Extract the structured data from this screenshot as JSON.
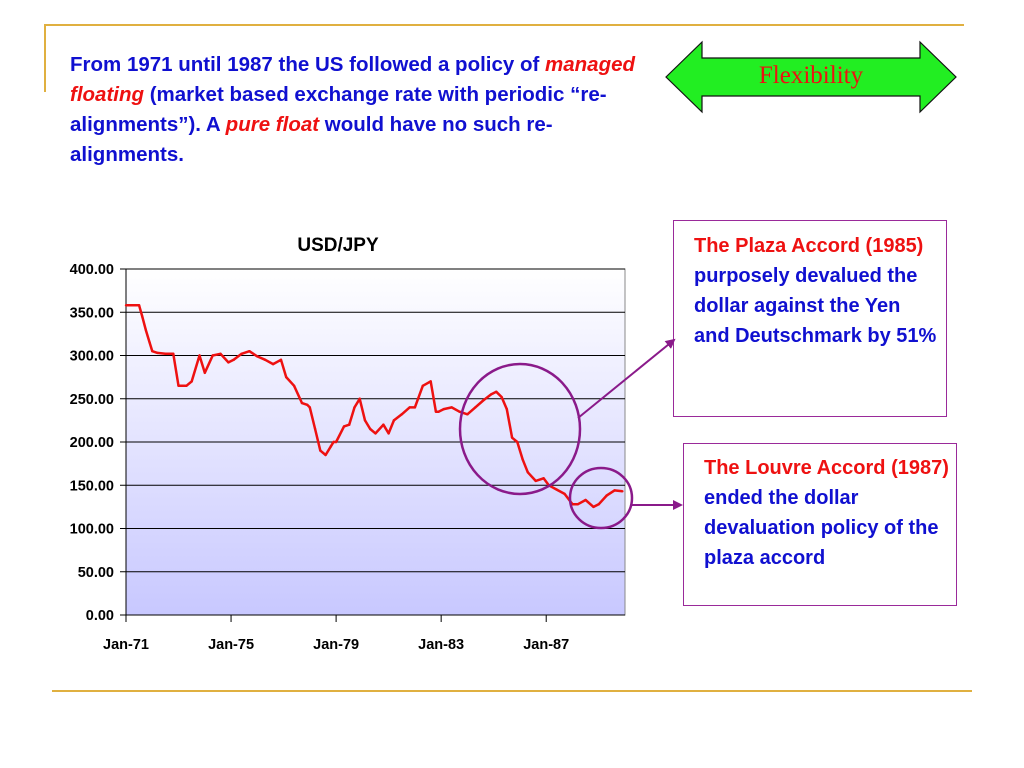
{
  "slide": {
    "intro": {
      "p1": "From 1971 until 1987 the US followed a policy of ",
      "p2": "managed floating",
      "p3": " (market based exchange rate with periodic “re-alignments”). A ",
      "p4": "pure float",
      "p5": " would have no such re-alignments."
    },
    "arrow_label": "Flexibility",
    "plaza": {
      "title": "The Plaza Accord (1985)",
      "body": " purposely devalued the dollar against the Yen and Deutschmark by 51%"
    },
    "louvre": {
      "title": "The Louvre Accord (1987)",
      "body": " ended the dollar devaluation policy of the plaza accord"
    }
  },
  "colors": {
    "accent_line": "#e0b040",
    "text_blue": "#1010d0",
    "text_red": "#ee1111",
    "arrow_fill": "#22ee22",
    "callout_border": "#9a2a9a",
    "circle_stroke": "#8a1a8a",
    "series_line": "#ee1111",
    "plot_bg_top": "#ffffff",
    "plot_bg_bottom": "#c8c8ff"
  },
  "chart_data": {
    "type": "line",
    "title": "USD/JPY",
    "ylim": [
      0,
      400
    ],
    "y_ticks": [
      0,
      50,
      100,
      150,
      200,
      250,
      300,
      350,
      400
    ],
    "y_tick_labels": [
      "0.00",
      "50.00",
      "100.00",
      "150.00",
      "200.00",
      "250.00",
      "300.00",
      "350.00",
      "400.00"
    ],
    "x_ticks": [
      1971,
      1975,
      1979,
      1983,
      1987
    ],
    "x_tick_labels": [
      "Jan-71",
      "Jan-75",
      "Jan-79",
      "Jan-83",
      "Jan-87"
    ],
    "xlim": [
      1971,
      1990
    ],
    "grid": true,
    "series": [
      {
        "x": [
          1971.0,
          1971.5,
          1971.62,
          1971.75,
          1971.9,
          1972.0,
          1972.2,
          1972.5,
          1972.8,
          1973.0,
          1973.1,
          1973.3,
          1973.5,
          1973.8,
          1974.0,
          1974.3,
          1974.6,
          1974.9,
          1975.1,
          1975.4,
          1975.7,
          1976.0,
          1976.3,
          1976.6,
          1976.9,
          1977.1,
          1977.4,
          1977.7,
          1977.9,
          1978.0,
          1978.2,
          1978.4,
          1978.6,
          1978.8,
          1978.9,
          1979.0,
          1979.3,
          1979.5,
          1979.7,
          1979.9,
          1980.1,
          1980.3,
          1980.5,
          1980.8,
          1981.0,
          1981.2,
          1981.5,
          1981.8,
          1982.0,
          1982.3,
          1982.6,
          1982.8,
          1982.9,
          1983.1,
          1983.4,
          1983.7,
          1984.0,
          1984.3,
          1984.6,
          1984.9,
          1985.1,
          1985.3,
          1985.5,
          1985.7,
          1985.9,
          1986.1,
          1986.3,
          1986.6,
          1986.9,
          1987.1,
          1987.4,
          1987.7,
          1988.0,
          1988.2,
          1988.5,
          1988.8,
          1989.0,
          1989.3,
          1989.6,
          1989.9
        ],
        "y": [
          358,
          358,
          345,
          330,
          315,
          305,
          303,
          302,
          302,
          265,
          265,
          265,
          270,
          300,
          280,
          300,
          302,
          292,
          295,
          302,
          305,
          299,
          295,
          290,
          295,
          275,
          265,
          245,
          243,
          240,
          215,
          190,
          185,
          195,
          200,
          200,
          218,
          220,
          240,
          250,
          225,
          215,
          210,
          220,
          210,
          225,
          232,
          240,
          240,
          265,
          270,
          235,
          235,
          238,
          240,
          235,
          232,
          240,
          248,
          255,
          258,
          252,
          238,
          205,
          200,
          180,
          165,
          155,
          158,
          150,
          145,
          140,
          128,
          128,
          133,
          125,
          128,
          138,
          144,
          143
        ],
        "name": ""
      }
    ]
  }
}
